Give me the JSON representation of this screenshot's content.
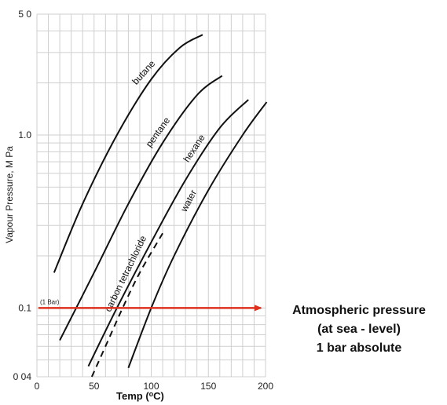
{
  "chart_data": {
    "type": "line",
    "x_scale": "linear",
    "y_scale": "log",
    "xlim": [
      0,
      200
    ],
    "ylim": [
      0.04,
      5.0
    ],
    "xlabel": "Temp (",
    "xlabel_degree": "o",
    "xlabel_unit": "C)",
    "ylabel": "Vapour Pressure, M Pa",
    "x_ticks": [
      {
        "value": 0,
        "label": "0"
      },
      {
        "value": 50,
        "label": "50"
      },
      {
        "value": 100,
        "label": "100"
      },
      {
        "value": 150,
        "label": "150"
      },
      {
        "value": 200,
        "label": "200"
      }
    ],
    "y_ticks": [
      {
        "value": 5.0,
        "label": "5 0"
      },
      {
        "value": 1.0,
        "label": "1.0"
      },
      {
        "value": 0.1,
        "label": "0.1"
      },
      {
        "value": 0.04,
        "label": "0 04"
      }
    ],
    "grid": true,
    "series": [
      {
        "name": "butane",
        "style": "solid",
        "x": [
          15,
          40,
          70,
          100,
          125,
          145
        ],
        "y": [
          0.16,
          0.4,
          1.0,
          2.1,
          3.2,
          3.8
        ]
      },
      {
        "name": "pentane",
        "style": "solid",
        "x": [
          20,
          50,
          80,
          110,
          140,
          162
        ],
        "y": [
          0.065,
          0.16,
          0.4,
          0.9,
          1.7,
          2.2
        ]
      },
      {
        "name": "hexane",
        "style": "solid",
        "x": [
          45,
          70,
          100,
          130,
          160,
          185
        ],
        "y": [
          0.046,
          0.1,
          0.24,
          0.55,
          1.1,
          1.6
        ]
      },
      {
        "name": "carbon tetrachloride",
        "style": "dashed",
        "x": [
          48,
          60,
          75,
          90,
          110
        ],
        "y": [
          0.04,
          0.06,
          0.1,
          0.16,
          0.27
        ]
      },
      {
        "name": "water",
        "style": "solid",
        "x": [
          80,
          100,
          120,
          150,
          180,
          201
        ],
        "y": [
          0.045,
          0.1,
          0.2,
          0.48,
          1.0,
          1.55
        ]
      }
    ],
    "reference_line": {
      "label": "(1 Bar)",
      "y": 0.1,
      "color": "#e0301e"
    },
    "annotation": {
      "lines": [
        "Atmospheric pressure",
        "(at sea - level)",
        "1 bar absolute"
      ]
    }
  }
}
